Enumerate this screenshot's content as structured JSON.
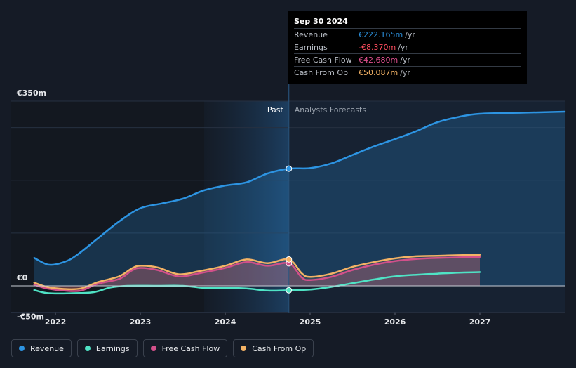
{
  "chart_data": {
    "type": "line",
    "title": "",
    "y_axis": {
      "min": -50,
      "max": 350,
      "ticks": [
        350,
        0,
        -50
      ],
      "tick_labels": [
        "€350m",
        "€0",
        "-€50m"
      ]
    },
    "x_axis": {
      "min": 2021.6,
      "max": 2028.0,
      "ticks": [
        2022,
        2023,
        2024,
        2025,
        2026,
        2027
      ],
      "tick_labels": [
        "2022",
        "2023",
        "2024",
        "2025",
        "2026",
        "2027"
      ]
    },
    "divider_x": 2024.75,
    "past_label": "Past",
    "forecast_label": "Analysts Forecasts",
    "series": [
      {
        "name": "Revenue",
        "color": "#2d94e2",
        "area": true,
        "points": [
          [
            2021.75,
            53
          ],
          [
            2021.92,
            40
          ],
          [
            2022.1,
            45
          ],
          [
            2022.25,
            58
          ],
          [
            2022.5,
            90
          ],
          [
            2022.75,
            122
          ],
          [
            2023.0,
            147
          ],
          [
            2023.25,
            156
          ],
          [
            2023.5,
            165
          ],
          [
            2023.75,
            181
          ],
          [
            2024.0,
            190
          ],
          [
            2024.25,
            196
          ],
          [
            2024.5,
            213
          ],
          [
            2024.75,
            222
          ],
          [
            2025.0,
            223
          ],
          [
            2025.25,
            232
          ],
          [
            2025.5,
            248
          ],
          [
            2025.75,
            264
          ],
          [
            2026.0,
            278
          ],
          [
            2026.25,
            293
          ],
          [
            2026.5,
            310
          ],
          [
            2026.75,
            320
          ],
          [
            2027.0,
            326
          ],
          [
            2027.5,
            328
          ],
          [
            2028.0,
            330
          ]
        ]
      },
      {
        "name": "Earnings",
        "color": "#4fe3c5",
        "area": false,
        "points": [
          [
            2021.75,
            -8
          ],
          [
            2021.92,
            -14
          ],
          [
            2022.2,
            -14
          ],
          [
            2022.45,
            -12
          ],
          [
            2022.65,
            -3
          ],
          [
            2022.85,
            0
          ],
          [
            2023.2,
            0
          ],
          [
            2023.5,
            0
          ],
          [
            2023.75,
            -4
          ],
          [
            2024.0,
            -4
          ],
          [
            2024.25,
            -5
          ],
          [
            2024.5,
            -9
          ],
          [
            2024.75,
            -8.37
          ],
          [
            2025.0,
            -7
          ],
          [
            2025.25,
            -2
          ],
          [
            2025.5,
            5
          ],
          [
            2025.75,
            12
          ],
          [
            2026.0,
            18
          ],
          [
            2026.25,
            21
          ],
          [
            2026.5,
            23
          ],
          [
            2026.75,
            25
          ],
          [
            2027.0,
            26
          ]
        ]
      },
      {
        "name": "Free Cash Flow",
        "color": "#d2508a",
        "area": true,
        "points": [
          [
            2021.75,
            2
          ],
          [
            2021.9,
            -5
          ],
          [
            2022.1,
            -9
          ],
          [
            2022.3,
            -9
          ],
          [
            2022.5,
            4
          ],
          [
            2022.75,
            13
          ],
          [
            2022.9,
            29
          ],
          [
            2023.0,
            34
          ],
          [
            2023.2,
            30
          ],
          [
            2023.45,
            18
          ],
          [
            2023.7,
            24
          ],
          [
            2024.0,
            34
          ],
          [
            2024.25,
            45
          ],
          [
            2024.5,
            38
          ],
          [
            2024.75,
            42.68
          ],
          [
            2024.9,
            16
          ],
          [
            2025.0,
            11
          ],
          [
            2025.25,
            17
          ],
          [
            2025.5,
            30
          ],
          [
            2025.75,
            40
          ],
          [
            2026.0,
            47
          ],
          [
            2026.25,
            51
          ],
          [
            2026.5,
            53
          ],
          [
            2026.75,
            54
          ],
          [
            2027.0,
            55
          ]
        ]
      },
      {
        "name": "Cash From Op",
        "color": "#f3b265",
        "area": true,
        "points": [
          [
            2021.75,
            6
          ],
          [
            2021.9,
            -2
          ],
          [
            2022.1,
            -6
          ],
          [
            2022.3,
            -5
          ],
          [
            2022.5,
            7
          ],
          [
            2022.75,
            18
          ],
          [
            2022.9,
            33
          ],
          [
            2023.0,
            38
          ],
          [
            2023.2,
            35
          ],
          [
            2023.45,
            22
          ],
          [
            2023.7,
            28
          ],
          [
            2024.0,
            38
          ],
          [
            2024.25,
            50
          ],
          [
            2024.5,
            43
          ],
          [
            2024.75,
            50.087
          ],
          [
            2024.9,
            24
          ],
          [
            2025.0,
            17
          ],
          [
            2025.25,
            23
          ],
          [
            2025.5,
            36
          ],
          [
            2025.75,
            45
          ],
          [
            2026.0,
            52
          ],
          [
            2026.25,
            56
          ],
          [
            2026.5,
            57
          ],
          [
            2026.75,
            58
          ],
          [
            2027.0,
            59
          ]
        ]
      }
    ]
  },
  "tooltip": {
    "date": "Sep 30 2024",
    "unit": "/yr",
    "rows": [
      {
        "name": "Revenue",
        "value": "€222.165m",
        "color": "#2d94e2"
      },
      {
        "name": "Earnings",
        "value": "-€8.370m",
        "color": "#ff4d5e"
      },
      {
        "name": "Free Cash Flow",
        "value": "€42.680m",
        "color": "#e0508f"
      },
      {
        "name": "Cash From Op",
        "value": "€50.087m",
        "color": "#f3b265"
      }
    ]
  },
  "legend": [
    {
      "label": "Revenue",
      "color": "#2d94e2"
    },
    {
      "label": "Earnings",
      "color": "#4fe3c5"
    },
    {
      "label": "Free Cash Flow",
      "color": "#d2508a"
    },
    {
      "label": "Cash From Op",
      "color": "#f3b265"
    }
  ]
}
